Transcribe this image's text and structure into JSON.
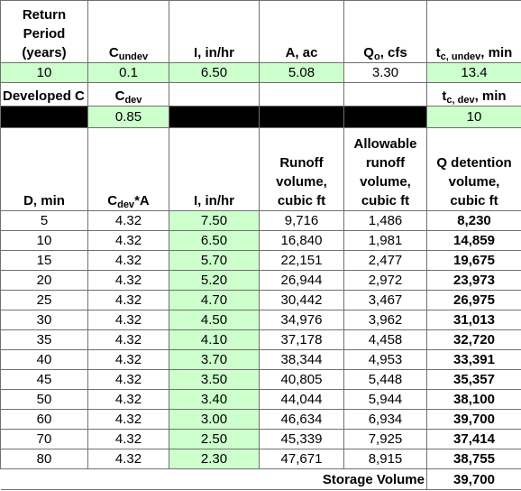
{
  "top_header": [
    [
      [
        "Return"
      ],
      [
        "Period"
      ],
      [
        "(years)"
      ]
    ],
    [
      [
        "C",
        {
          "sub": "undev"
        }
      ]
    ],
    [
      [
        "I, in/hr"
      ]
    ],
    [
      [
        "A, ac"
      ]
    ],
    [
      [
        "Q",
        {
          "sub": "o"
        },
        ", cfs"
      ]
    ],
    [
      [
        "t",
        {
          "sub": "c, undev"
        },
        ", min"
      ]
    ]
  ],
  "top_values": [
    "10",
    "0.1",
    "6.50",
    "5.08",
    "3.30",
    "13.4"
  ],
  "dev_header": [
    [
      [
        "Developed C"
      ]
    ],
    [
      [
        "C",
        {
          "sub": "dev"
        }
      ]
    ],
    null,
    null,
    null,
    [
      [
        "t",
        {
          "sub": "c, dev"
        },
        ", min"
      ]
    ]
  ],
  "dev_values": [
    null,
    "0.85",
    null,
    null,
    null,
    "10"
  ],
  "table_header": [
    [
      [
        "D, min"
      ]
    ],
    [
      [
        "C",
        {
          "sub": "dev"
        },
        "*A"
      ]
    ],
    [
      [
        "I, in/hr"
      ]
    ],
    [
      [
        "Runoff"
      ],
      [
        "volume,"
      ],
      [
        "cubic ft"
      ]
    ],
    [
      [
        "Allowable"
      ],
      [
        "runoff"
      ],
      [
        "volume,"
      ],
      [
        "cubic ft"
      ]
    ],
    [
      [
        "Q detention"
      ],
      [
        "volume,"
      ],
      [
        "cubic ft"
      ]
    ]
  ],
  "rows": [
    [
      "5",
      "4.32",
      "7.50",
      "9,716",
      "1,486",
      "8,230"
    ],
    [
      "10",
      "4.32",
      "6.50",
      "16,840",
      "1,981",
      "14,859"
    ],
    [
      "15",
      "4.32",
      "5.70",
      "22,151",
      "2,477",
      "19,675"
    ],
    [
      "20",
      "4.32",
      "5.20",
      "26,944",
      "2,972",
      "23,973"
    ],
    [
      "25",
      "4.32",
      "4.70",
      "30,442",
      "3,467",
      "26,975"
    ],
    [
      "30",
      "4.32",
      "4.50",
      "34,976",
      "3,962",
      "31,013"
    ],
    [
      "35",
      "4.32",
      "4.10",
      "37,178",
      "4,458",
      "32,720"
    ],
    [
      "40",
      "4.32",
      "3.70",
      "38,344",
      "4,953",
      "33,391"
    ],
    [
      "45",
      "4.32",
      "3.50",
      "40,805",
      "5,448",
      "35,357"
    ],
    [
      "50",
      "4.32",
      "3.40",
      "44,044",
      "5,944",
      "38,100"
    ],
    [
      "60",
      "4.32",
      "3.00",
      "46,634",
      "6,934",
      "39,700"
    ],
    [
      "70",
      "4.32",
      "2.50",
      "45,339",
      "7,925",
      "37,414"
    ],
    [
      "80",
      "4.32",
      "2.30",
      "47,671",
      "8,915",
      "38,755"
    ]
  ],
  "storage": {
    "label": "Storage Volume",
    "value": "39,700"
  }
}
